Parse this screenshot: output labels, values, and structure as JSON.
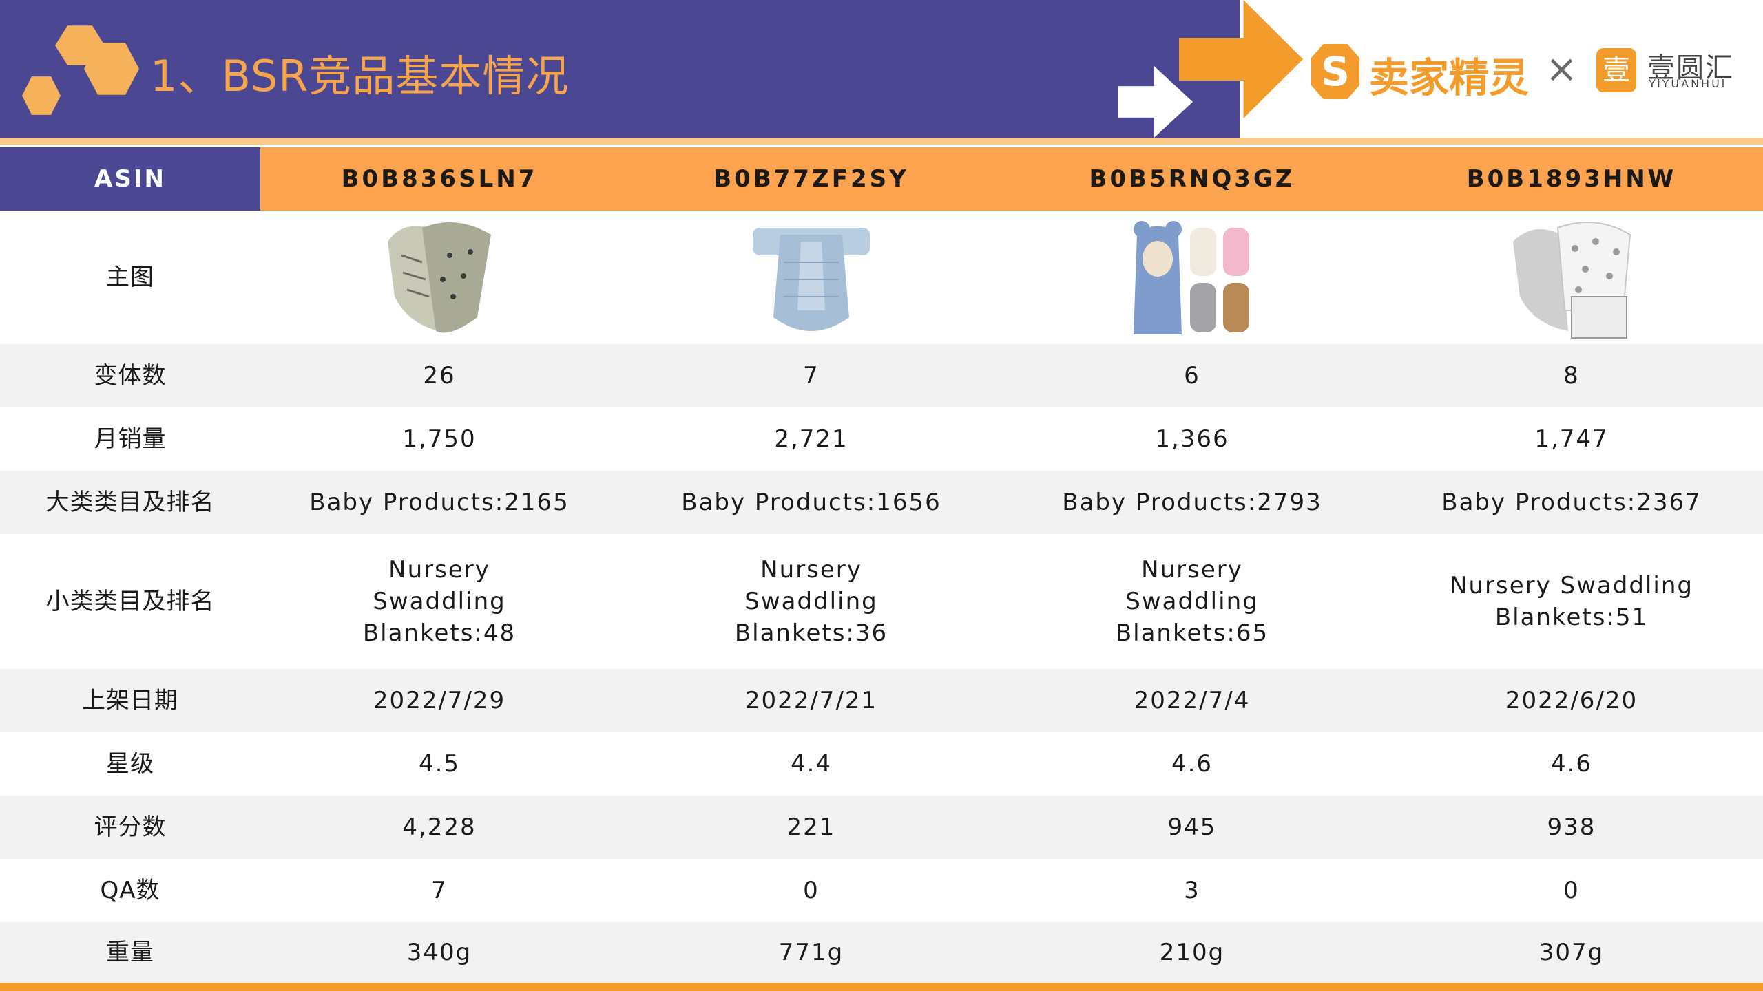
{
  "header": {
    "title": "1、BSR竞品基本情况",
    "brand_primary": "卖家精灵",
    "brand_separator": "×",
    "brand_secondary": "壹圆汇",
    "brand_secondary_sub": "YiYUANHUi",
    "colors": {
      "header_bg": "#4b4792",
      "accent": "#f39c2b",
      "table_header": "#fba34f"
    }
  },
  "table": {
    "asin_label": "ASIN",
    "asins": [
      "B0B836SLN7",
      "B0B77ZF2SY",
      "B0B5RNQ3GZ",
      "B0B1893HNW"
    ],
    "rows": [
      {
        "label": "主图",
        "values": [
          "",
          "",
          "",
          ""
        ]
      },
      {
        "label": "变体数",
        "values": [
          "26",
          "7",
          "6",
          "8"
        ]
      },
      {
        "label": "月销量",
        "values": [
          "1,750",
          "2,721",
          "1,366",
          "1,747"
        ]
      },
      {
        "label": "大类类目及排名",
        "values": [
          "Baby Products:2165",
          "Baby Products:1656",
          "Baby Products:2793",
          "Baby Products:2367"
        ]
      },
      {
        "label": "小类类目及排名",
        "values": [
          "Nursery Swaddling Blankets:48",
          "Nursery Swaddling Blankets:36",
          "Nursery Swaddling Blankets:65",
          "Nursery Swaddling Blankets:51"
        ]
      },
      {
        "label": "上架日期",
        "values": [
          "2022/7/29",
          "2022/7/21",
          "2022/7/4",
          "2022/6/20"
        ]
      },
      {
        "label": "星级",
        "values": [
          "4.5",
          "4.4",
          "4.6",
          "4.6"
        ]
      },
      {
        "label": "评分数",
        "values": [
          "4,228",
          "221",
          "945",
          "938"
        ]
      },
      {
        "label": "QA数",
        "values": [
          "7",
          "0",
          "3",
          "0"
        ]
      },
      {
        "label": "重量",
        "values": [
          "340g",
          "771g",
          "210g",
          "307g"
        ]
      }
    ]
  }
}
